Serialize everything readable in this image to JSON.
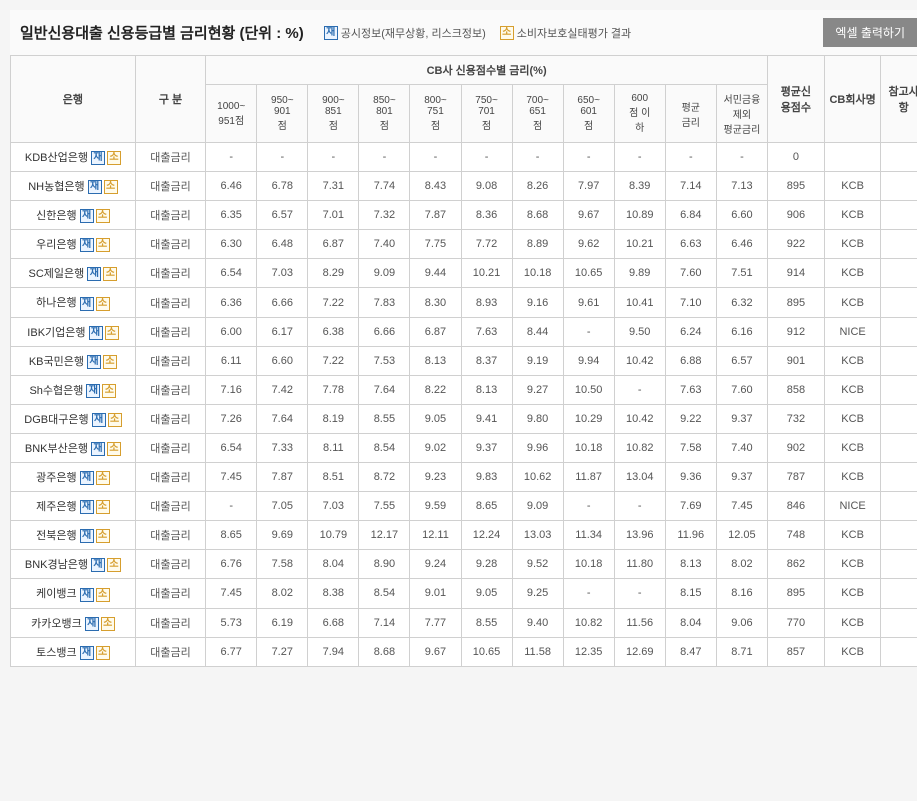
{
  "title": "일반신용대출 신용등급별 금리현황 (단위 : %)",
  "legend": {
    "jae": {
      "badge": "재",
      "text": "공시정보(재무상황, 리스크정보)"
    },
    "so": {
      "badge": "소",
      "text": "소비자보호실태평가 결과"
    }
  },
  "excel_button": "엑셀 출력하기",
  "columns": {
    "bank": "은행",
    "gubun": "구 분",
    "cb_group": "CB사 신용점수별 금리(%)",
    "score_ranges": [
      "1000~\n951점",
      "950~\n901\n점",
      "900~\n851\n점",
      "850~\n801\n점",
      "800~\n751\n점",
      "750~\n701\n점",
      "700~\n651\n점",
      "650~\n601\n점",
      "600\n점 이\n하",
      "평균\n금리",
      "서민금융\n제외\n평균금리"
    ],
    "avg_credit": "평균신\n용점수",
    "cb_company": "CB회사명",
    "note": "참고사\n항"
  },
  "gubun_label": "대출금리",
  "rows": [
    {
      "bank": "KDB산업은행",
      "vals": [
        "-",
        "-",
        "-",
        "-",
        "-",
        "-",
        "-",
        "-",
        "-",
        "-",
        "-"
      ],
      "avg": "0",
      "cb": ""
    },
    {
      "bank": "NH농협은행",
      "vals": [
        "6.46",
        "6.78",
        "7.31",
        "7.74",
        "8.43",
        "9.08",
        "8.26",
        "7.97",
        "8.39",
        "7.14",
        "7.13"
      ],
      "avg": "895",
      "cb": "KCB"
    },
    {
      "bank": "신한은행",
      "vals": [
        "6.35",
        "6.57",
        "7.01",
        "7.32",
        "7.87",
        "8.36",
        "8.68",
        "9.67",
        "10.89",
        "6.84",
        "6.60"
      ],
      "avg": "906",
      "cb": "KCB"
    },
    {
      "bank": "우리은행",
      "vals": [
        "6.30",
        "6.48",
        "6.87",
        "7.40",
        "7.75",
        "7.72",
        "8.89",
        "9.62",
        "10.21",
        "6.63",
        "6.46"
      ],
      "avg": "922",
      "cb": "KCB"
    },
    {
      "bank": "SC제일은행",
      "vals": [
        "6.54",
        "7.03",
        "8.29",
        "9.09",
        "9.44",
        "10.21",
        "10.18",
        "10.65",
        "9.89",
        "7.60",
        "7.51"
      ],
      "avg": "914",
      "cb": "KCB"
    },
    {
      "bank": "하나은행",
      "vals": [
        "6.36",
        "6.66",
        "7.22",
        "7.83",
        "8.30",
        "8.93",
        "9.16",
        "9.61",
        "10.41",
        "7.10",
        "6.32"
      ],
      "avg": "895",
      "cb": "KCB"
    },
    {
      "bank": "IBK기업은행",
      "vals": [
        "6.00",
        "6.17",
        "6.38",
        "6.66",
        "6.87",
        "7.63",
        "8.44",
        "-",
        "9.50",
        "6.24",
        "6.16"
      ],
      "avg": "912",
      "cb": "NICE"
    },
    {
      "bank": "KB국민은행",
      "vals": [
        "6.11",
        "6.60",
        "7.22",
        "7.53",
        "8.13",
        "8.37",
        "9.19",
        "9.94",
        "10.42",
        "6.88",
        "6.57"
      ],
      "avg": "901",
      "cb": "KCB"
    },
    {
      "bank": "Sh수협은행",
      "vals": [
        "7.16",
        "7.42",
        "7.78",
        "7.64",
        "8.22",
        "8.13",
        "9.27",
        "10.50",
        "-",
        "7.63",
        "7.60"
      ],
      "avg": "858",
      "cb": "KCB"
    },
    {
      "bank": "DGB대구은행",
      "vals": [
        "7.26",
        "7.64",
        "8.19",
        "8.55",
        "9.05",
        "9.41",
        "9.80",
        "10.29",
        "10.42",
        "9.22",
        "9.37"
      ],
      "avg": "732",
      "cb": "KCB"
    },
    {
      "bank": "BNK부산은행",
      "vals": [
        "6.54",
        "7.33",
        "8.11",
        "8.54",
        "9.02",
        "9.37",
        "9.96",
        "10.18",
        "10.82",
        "7.58",
        "7.40"
      ],
      "avg": "902",
      "cb": "KCB"
    },
    {
      "bank": "광주은행",
      "vals": [
        "7.45",
        "7.87",
        "8.51",
        "8.72",
        "9.23",
        "9.83",
        "10.62",
        "11.87",
        "13.04",
        "9.36",
        "9.37"
      ],
      "avg": "787",
      "cb": "KCB"
    },
    {
      "bank": "제주은행",
      "vals": [
        "-",
        "7.05",
        "7.03",
        "7.55",
        "9.59",
        "8.65",
        "9.09",
        "-",
        "-",
        "7.69",
        "7.45"
      ],
      "avg": "846",
      "cb": "NICE"
    },
    {
      "bank": "전북은행",
      "vals": [
        "8.65",
        "9.69",
        "10.79",
        "12.17",
        "12.11",
        "12.24",
        "13.03",
        "11.34",
        "13.96",
        "11.96",
        "12.05"
      ],
      "avg": "748",
      "cb": "KCB"
    },
    {
      "bank": "BNK경남은행",
      "vals": [
        "6.76",
        "7.58",
        "8.04",
        "8.90",
        "9.24",
        "9.28",
        "9.52",
        "10.18",
        "11.80",
        "8.13",
        "8.02"
      ],
      "avg": "862",
      "cb": "KCB"
    },
    {
      "bank": "케이뱅크",
      "vals": [
        "7.45",
        "8.02",
        "8.38",
        "8.54",
        "9.01",
        "9.05",
        "9.25",
        "-",
        "-",
        "8.15",
        "8.16"
      ],
      "avg": "895",
      "cb": "KCB"
    },
    {
      "bank": "카카오뱅크",
      "vals": [
        "5.73",
        "6.19",
        "6.68",
        "7.14",
        "7.77",
        "8.55",
        "9.40",
        "10.82",
        "11.56",
        "8.04",
        "9.06"
      ],
      "avg": "770",
      "cb": "KCB"
    },
    {
      "bank": "토스뱅크",
      "vals": [
        "6.77",
        "7.27",
        "7.94",
        "8.68",
        "9.67",
        "10.65",
        "11.58",
        "12.35",
        "12.69",
        "8.47",
        "8.71"
      ],
      "avg": "857",
      "cb": "KCB"
    }
  ]
}
